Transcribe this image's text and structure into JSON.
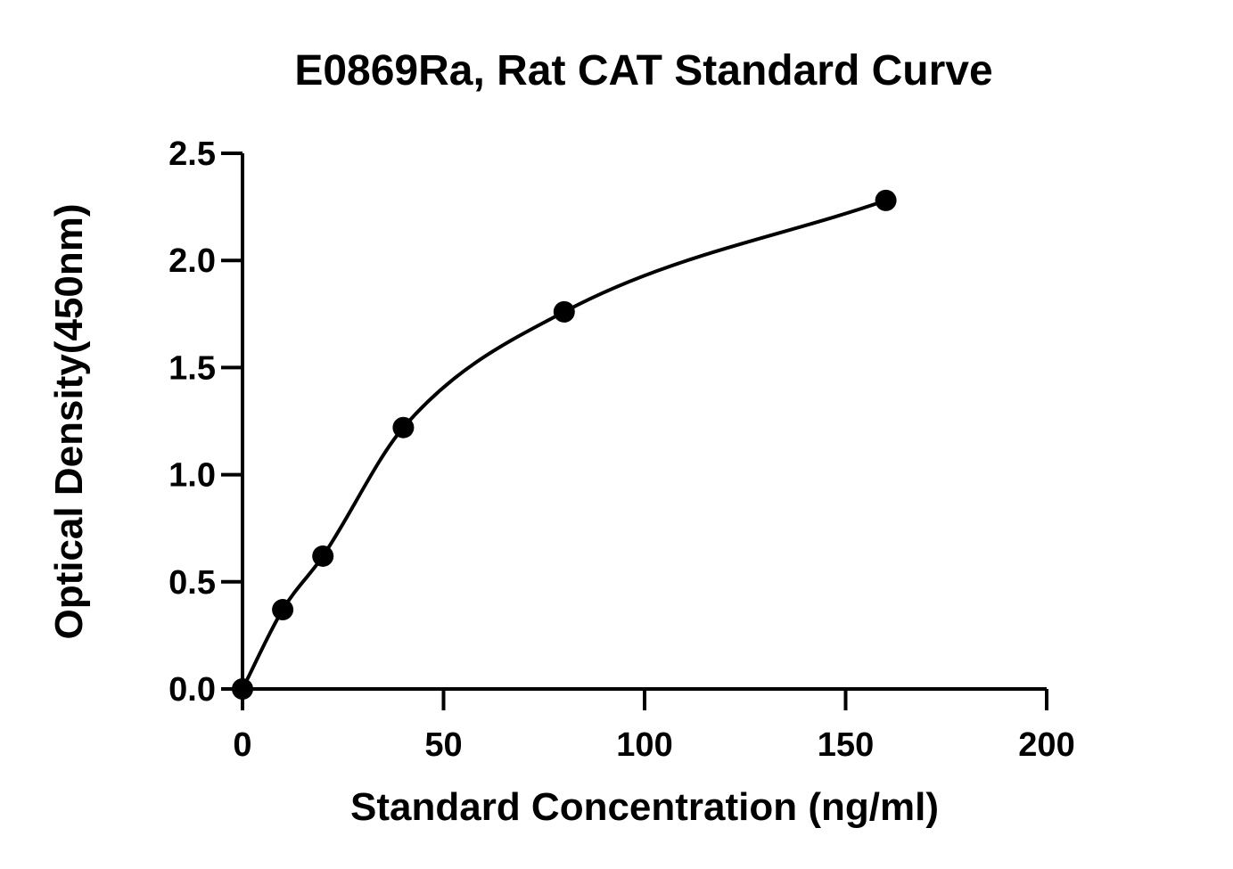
{
  "chart_data": {
    "type": "scatter",
    "title": "E0869Ra, Rat CAT Standard Curve",
    "xlabel": "Standard Concentration (ng/ml)",
    "ylabel": "Optical Density(450nm)",
    "xlim": [
      0,
      200
    ],
    "ylim": [
      0,
      2.5
    ],
    "x_ticks": [
      "0",
      "50",
      "100",
      "150",
      "200"
    ],
    "y_ticks": [
      "0.0",
      "0.5",
      "1.0",
      "1.5",
      "2.0",
      "2.5"
    ],
    "grid": false,
    "legend": "none",
    "series": [
      {
        "points": [
          {
            "x": 0,
            "y": 0.0
          },
          {
            "x": 10,
            "y": 0.37
          },
          {
            "x": 20,
            "y": 0.62
          },
          {
            "x": 40,
            "y": 1.22
          },
          {
            "x": 80,
            "y": 1.76
          },
          {
            "x": 160,
            "y": 2.28
          }
        ],
        "fit": "four-parameter logistic curve",
        "color": "#000000"
      }
    ]
  }
}
